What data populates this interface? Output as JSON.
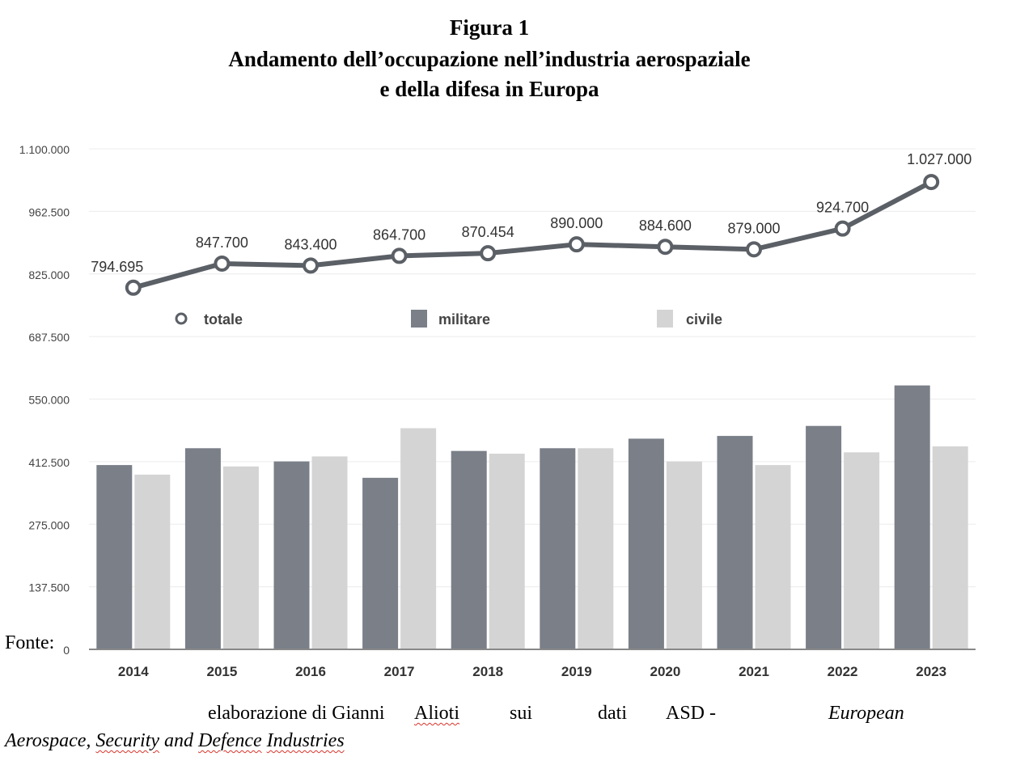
{
  "figure": {
    "label": "Figura 1",
    "title_line1": "Andamento dell’occupazione nell’industria aerospaziale",
    "title_line2": "e della difesa in Europa"
  },
  "chart_data": {
    "type": "bar",
    "categories": [
      "2014",
      "2015",
      "2016",
      "2017",
      "2018",
      "2019",
      "2020",
      "2021",
      "2022",
      "2023"
    ],
    "ylim": [
      0,
      1100000
    ],
    "yticks": [
      "0",
      "137.500",
      "275.000",
      "412.500",
      "550.000",
      "687.500",
      "825.000",
      "962.500",
      "1.100.000"
    ],
    "grid": true,
    "legend_position": "center, above bars",
    "series": [
      {
        "name": "militare",
        "kind": "bar",
        "color": "#7a7f88",
        "values": [
          405000,
          442000,
          413000,
          377000,
          436000,
          442000,
          463000,
          469000,
          491000,
          580000
        ]
      },
      {
        "name": "civile",
        "kind": "bar",
        "color": "#d4d4d4",
        "values": [
          384000,
          402000,
          424000,
          486000,
          430000,
          442000,
          413000,
          405000,
          433000,
          446000
        ]
      },
      {
        "name": "totale",
        "kind": "line",
        "color": "#5b5f66",
        "values": [
          794695,
          847700,
          843400,
          864700,
          870454,
          890000,
          884600,
          879000,
          924700,
          1027000
        ],
        "labels": [
          "794.695",
          "847.700",
          "843.400",
          "864.700",
          "870.454",
          "890.000",
          "884.600",
          "879.000",
          "924.700",
          "1.027.000"
        ]
      }
    ]
  },
  "source": {
    "prefix": "Fonte:",
    "text": "elaborazione di Gianni",
    "name": "Alioti",
    "w_sui": "sui",
    "w_dati": "dati",
    "w_asd": "ASD -",
    "w_european": "European",
    "line2_a": "Aerospace",
    "line2_b": ", ",
    "line2_c": "Security",
    "line2_d": " and ",
    "line2_e": "Defence",
    "line2_f": " ",
    "line2_g": "Industries"
  }
}
